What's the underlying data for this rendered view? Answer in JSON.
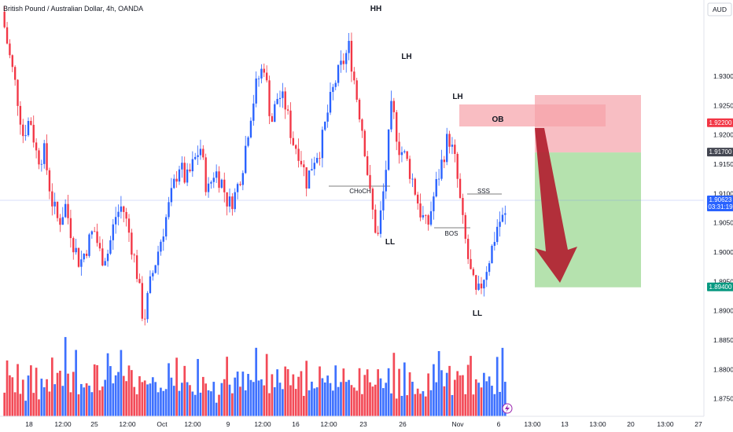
{
  "header": {
    "title": "British Pound / Australian Dollar, 4h, OANDA",
    "currency": "AUD"
  },
  "colors": {
    "up": "#2962ff",
    "down": "#f23645",
    "vol_up": "#2962ff",
    "vol_down": "#f23645",
    "ob_fill": "#f7a1a8",
    "stop_fill": "#f7b3b8",
    "target_fill": "#a8dda0",
    "badge_red": "#f23645",
    "badge_green": "#089981",
    "badge_dark": "#434651",
    "badge_blue": "#2962ff",
    "arrow": "#b22030"
  },
  "chart_data": {
    "type": "candlestick",
    "title": "British Pound / Australian Dollar, 4h, OANDA",
    "ylim": [
      1.872,
      1.943
    ],
    "y_ticks": [
      "1.93000",
      "1.92500",
      "1.92000",
      "1.91500",
      "1.91000",
      "1.90500",
      "1.90000",
      "1.89500",
      "1.89000",
      "1.88500",
      "1.88000",
      "1.87500"
    ],
    "x_ticks": [
      "18",
      "12:00",
      "25",
      "12:00",
      "Oct",
      "12:00",
      "9",
      "12:00",
      "16",
      "12:00",
      "23",
      "26",
      "Nov",
      "6",
      "13:00",
      "13",
      "13:00",
      "20",
      "13:00",
      "27"
    ],
    "current_price": "1.90623",
    "countdown": "03:31:19",
    "price_levels": {
      "stop": "1.92200",
      "entry": "1.91700",
      "target": "1.89400"
    },
    "annotations": [
      {
        "text": "HH",
        "price": 1.9405
      },
      {
        "text": "LH",
        "price": 1.927
      },
      {
        "text": "LH",
        "price": 1.922
      },
      {
        "text": "LL",
        "price": 1.899
      },
      {
        "text": "LL",
        "price": 1.89
      },
      {
        "text": "OB",
        "price": 1.919
      },
      {
        "text": "CHoCH",
        "price": 1.9065
      },
      {
        "text": "BOS",
        "price": 1.9005
      },
      {
        "text": "SSS",
        "price": 1.908
      }
    ],
    "series": [
      {
        "path_price": [
          1.941,
          1.934,
          1.928,
          1.92,
          1.923,
          1.916,
          1.917,
          1.909,
          1.905,
          1.908,
          1.902,
          1.898,
          1.901,
          1.904,
          1.899,
          1.9,
          1.906,
          1.908,
          1.903,
          1.897,
          1.888,
          1.895,
          1.9,
          1.905,
          1.91,
          1.915,
          1.912,
          1.915,
          1.918,
          1.91,
          1.914,
          1.912,
          1.908,
          1.91,
          1.915,
          1.923,
          1.929,
          1.932,
          1.922,
          1.927,
          1.925,
          1.919,
          1.917,
          1.912,
          1.916,
          1.918,
          1.924,
          1.929,
          1.932,
          1.935,
          1.927,
          1.92,
          1.909,
          1.902,
          1.912,
          1.925,
          1.918,
          1.916,
          1.912,
          1.907,
          1.904,
          1.91,
          1.915,
          1.92,
          1.915,
          1.905,
          1.897,
          1.892,
          1.896,
          1.9,
          1.905,
          1.906
        ]
      }
    ],
    "volume_relative": [
      0.6,
      0.9,
      0.7,
      1.0,
      0.5,
      0.8,
      0.6,
      0.9,
      0.4,
      0.7,
      0.8,
      0.6,
      0.9,
      0.5,
      0.7,
      0.6,
      0.8,
      0.7,
      0.9,
      0.6,
      1.0,
      0.8,
      0.7,
      1.2,
      0.9,
      0.6,
      0.8,
      1.1,
      0.7,
      0.9,
      0.6,
      0.8,
      1.0,
      0.7,
      0.9,
      0.8,
      0.6,
      0.9,
      0.7,
      1.0,
      0.8,
      0.6,
      0.9,
      0.7,
      1.1,
      0.8,
      0.6,
      0.9,
      0.7,
      0.8,
      0.7,
      0.9,
      0.6,
      0.8,
      0.7,
      0.9,
      0.8,
      0.6,
      0.7,
      0.9,
      0.8,
      0.7,
      1.0,
      0.6,
      0.8,
      0.9,
      0.7,
      0.6,
      0.9,
      0.8,
      0.7,
      0.5
    ]
  }
}
